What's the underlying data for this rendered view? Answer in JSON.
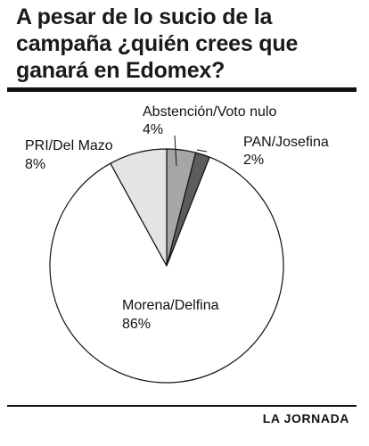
{
  "title": "A pesar de lo sucio de la campaña ¿quién crees que ganará en Edomex?",
  "credit": "LA JORNADA",
  "chart_data": {
    "type": "pie",
    "title": "A pesar de lo sucio de la campaña ¿quién crees que ganará en Edomex?",
    "slices": [
      {
        "label": "Abstención/Voto nulo",
        "value": 4,
        "value_label": "4%",
        "color": "#a6a6a6"
      },
      {
        "label": "PAN/Josefina",
        "value": 2,
        "value_label": "2%",
        "color": "#5c5c5c"
      },
      {
        "label": "Morena/Delfina",
        "value": 86,
        "value_label": "86%",
        "color": "#ffffff"
      },
      {
        "label": "PRI/Del Mazo",
        "value": 8,
        "value_label": "8%",
        "color": "#e4e4e4"
      }
    ],
    "start_angle_deg": 0,
    "direction": "clockwise"
  }
}
